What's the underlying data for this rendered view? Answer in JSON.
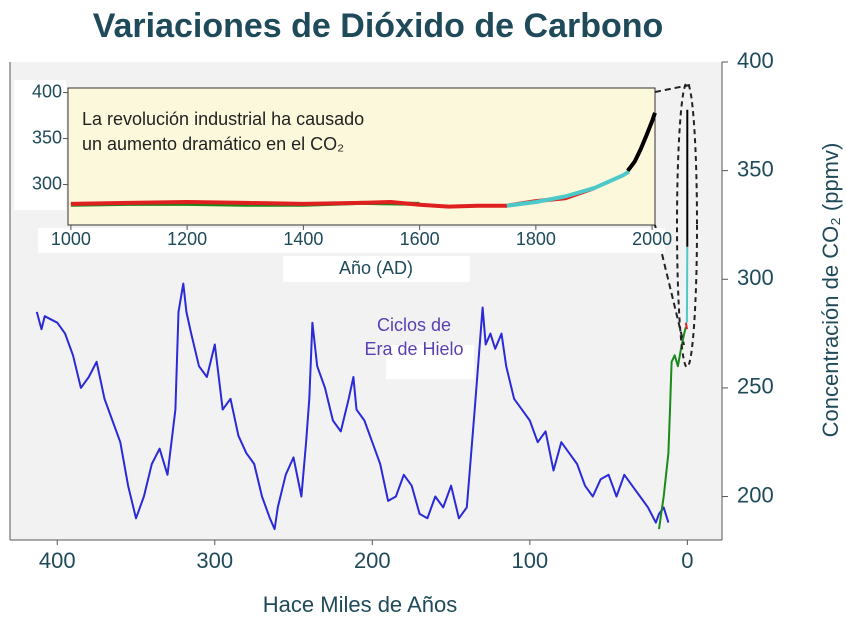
{
  "chart_data": [
    {
      "type": "line",
      "title": "Variaciones de Dióxido de Carbono",
      "xlabel": "Hace Miles de Años",
      "ylabel": "Concentración de CO₂ (ppmv)",
      "annotation": [
        "Ciclos de",
        "Era de Hielo"
      ],
      "xlim": [
        430,
        -22
      ],
      "xticks": [
        400,
        300,
        200,
        100,
        0
      ],
      "ylim": [
        180,
        400
      ],
      "yticks": [
        200,
        250,
        300,
        350,
        400
      ],
      "series": [
        {
          "color": "#2a2ad8",
          "x": [
            413,
            410,
            408,
            400,
            395,
            390,
            385,
            380,
            375,
            370,
            365,
            360,
            355,
            350,
            345,
            340,
            335,
            330,
            325,
            323,
            320,
            318,
            315,
            310,
            305,
            300,
            295,
            290,
            285,
            280,
            275,
            270,
            265,
            262,
            260,
            255,
            250,
            245,
            242,
            240,
            238,
            235,
            230,
            225,
            220,
            215,
            212,
            210,
            205,
            200,
            195,
            190,
            185,
            180,
            175,
            170,
            165,
            160,
            155,
            150,
            145,
            140,
            135,
            130,
            128,
            125,
            122,
            118,
            115,
            110,
            105,
            100,
            95,
            90,
            85,
            80,
            75,
            70,
            65,
            60,
            55,
            50,
            45,
            40,
            35,
            30,
            25,
            20,
            18,
            15,
            12
          ],
          "values": [
            285,
            277,
            283,
            280,
            275,
            265,
            250,
            255,
            262,
            245,
            235,
            225,
            205,
            190,
            200,
            215,
            222,
            210,
            240,
            285,
            298,
            285,
            275,
            260,
            255,
            270,
            240,
            245,
            228,
            220,
            215,
            200,
            190,
            185,
            195,
            210,
            218,
            200,
            225,
            245,
            280,
            260,
            250,
            235,
            230,
            245,
            255,
            240,
            235,
            225,
            215,
            198,
            200,
            210,
            205,
            192,
            190,
            200,
            195,
            205,
            190,
            195,
            240,
            287,
            270,
            275,
            268,
            275,
            260,
            245,
            240,
            235,
            225,
            230,
            212,
            225,
            220,
            215,
            205,
            200,
            208,
            210,
            200,
            210,
            205,
            200,
            195,
            188,
            192,
            195,
            188
          ]
        },
        {
          "color": "#1a8a1a",
          "x": [
            18,
            15,
            12,
            11,
            10,
            8,
            6,
            4,
            2,
            1
          ],
          "values": [
            185,
            200,
            220,
            240,
            262,
            265,
            260,
            268,
            275,
            278
          ]
        },
        {
          "color": "#e02020",
          "x": [
            1,
            0.2
          ],
          "values": [
            280,
            277
          ]
        },
        {
          "color": "#4dc9c9",
          "x": [
            0.3,
            0
          ],
          "values": [
            280,
            315
          ]
        },
        {
          "color": "#000000",
          "x": [
            0.05,
            0
          ],
          "values": [
            315,
            378
          ]
        }
      ]
    },
    {
      "type": "line",
      "xlabel": "Año (AD)",
      "annotation": [
        "La revolución industrial ha causado",
        "un aumento dramático en el CO₂"
      ],
      "xlim": [
        995,
        2005
      ],
      "xticks": [
        1000,
        1200,
        1400,
        1600,
        1800,
        2000
      ],
      "ylim": [
        256,
        405
      ],
      "yticks": [
        300,
        350,
        400
      ],
      "series": [
        {
          "color": "#1a8a1a",
          "x": [
            1000,
            1100,
            1200,
            1300,
            1400,
            1500,
            1600
          ],
          "values": [
            278,
            279,
            279,
            278,
            278,
            280,
            279
          ]
        },
        {
          "color": "#e02020",
          "x": [
            1000,
            1100,
            1200,
            1300,
            1400,
            1500,
            1550,
            1600,
            1650,
            1700,
            1750,
            1800,
            1850,
            1900
          ],
          "values": [
            279,
            280,
            281,
            280,
            279,
            280,
            281,
            278,
            276,
            277,
            277,
            282,
            285,
            296
          ]
        },
        {
          "color": "#4dc9c9",
          "x": [
            1750,
            1800,
            1850,
            1900,
            1950,
            1960
          ],
          "values": [
            277,
            281,
            287,
            296,
            310,
            314
          ]
        },
        {
          "color": "#000000",
          "x": [
            1958,
            1970,
            1980,
            1990,
            2000,
            2005
          ],
          "values": [
            315,
            325,
            338,
            353,
            369,
            378
          ]
        }
      ]
    }
  ]
}
